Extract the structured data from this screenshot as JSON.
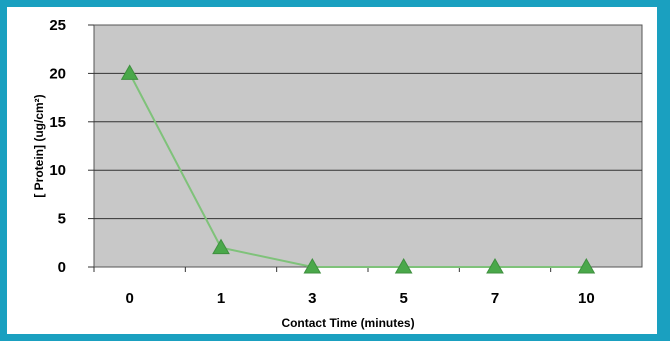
{
  "chart_data": {
    "type": "line",
    "title": "",
    "xlabel": "Contact Time (minutes)",
    "ylabel": "[ Protein] (ug/cm²)",
    "categories": [
      "0",
      "1",
      "3",
      "5",
      "7",
      "10"
    ],
    "series": [
      {
        "values": [
          20,
          2,
          0,
          0,
          0,
          0
        ],
        "color": "#7fc27a",
        "marker": "triangle",
        "marker_color": "#4aa84a"
      }
    ],
    "ylim": [
      0,
      25
    ],
    "yticks": [
      "0",
      "5",
      "10",
      "15",
      "20",
      "25"
    ],
    "grid": true,
    "plot_background": "#c8c8c8",
    "frame_color": "#1aa0c0"
  }
}
